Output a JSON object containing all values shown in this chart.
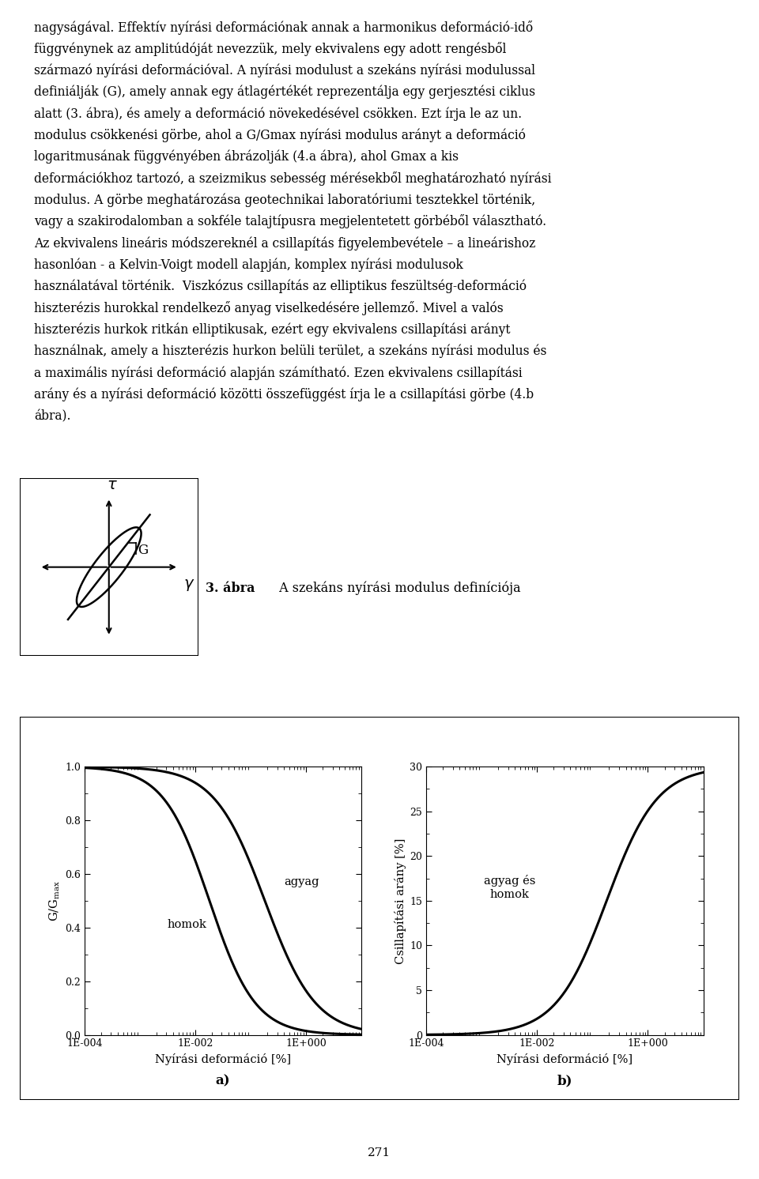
{
  "text_line1": "nagyságával. Effektív nyírási deformációnak annak a harmonikus deformáció-idő",
  "text_line2": "függvénynek az amplitúdóját nevezzük, mely ekvivalens egy adott rengésből",
  "text_line3": "származó nyírási deformációval. A nyírási modulust a szekáns nyírási modulussal",
  "text_line4": "definiálják (G), amely annak egy átlagértékét reprezentálja egy gerjesztési ciklus",
  "text_line5": "alatt (3. ábra), és amely a deformáció növekedésével csökken. Ezt írja le az un.",
  "text_line6": "modulus csökkenési görbe, ahol a G/Gmax nyírási modulus arányt a deformáció",
  "text_line7": "logaritmusának függvényében ábrázolják (4.a ábra), ahol Gmax a kis",
  "text_line8": "deformációkhoz tartozó, a szeizmikus sebesség mérésekből meghatározható nyírási",
  "text_line9": "modulus. A görbe meghatározása geotechnikai laboratóriumi tesztekkel történik,",
  "text_line10": "vagy a szakirodalomban a sokféle talajtípusra megjelentetett görbéből választható.",
  "text_line11": "Az ekvivalens lineáris módszereknél a csillapítás figyelembevétele – a lineárishoz",
  "text_line12": "hasonlóan - a Kelvin-Voigt modell alapján, komplex nyírási modulusok",
  "text_line13": "használatával történik.  Viszkózus csillapítás az elliptikus feszültség-deformáció",
  "text_line14": "hiszterézis hurokkal rendelkező anyag viselkedésére jellemző. Mivel a valós",
  "text_line15": "hiszterézis hurkok ritkán elliptikusak, ezért egy ekvivalens csillapítási arányt",
  "text_line16": "használnak, amely a hiszterézis hurkon belüli terület, a szekáns nyírási modulus és",
  "text_line17": "a maximális nyírási deformáció alapján számítható. Ezen ekvivalens csillapítási",
  "text_line18": "arány és a nyírási deformáció közötti összefüggést írja le a csillapítási görbe (4.b",
  "text_line19": "ábra).",
  "fig3_caption_bold": "3. ábra",
  "fig3_caption_normal": " A szekáns nyírási modulus definíciója",
  "xlabel_a": "Nyírási deformáció [%]",
  "ylabel_a": "G/G",
  "ylabel_a_sub": "max",
  "xlabel_b": "Nyírási deformáció [%]",
  "ylabel_b": "Csillapítási arány [%]",
  "label_a": "a)",
  "label_b": "b)",
  "homok_label": "homok",
  "agyag_label": "agyag",
  "agyag_homok_label": "agyag és\nhomok",
  "ylim_a": [
    0.0,
    1.0
  ],
  "ylim_b": [
    0,
    30
  ],
  "yticks_a": [
    0.0,
    0.2,
    0.4,
    0.6,
    0.8,
    1.0
  ],
  "ytick_labels_a": [
    "0.0",
    "0.2",
    "0.4",
    "0.6",
    "0.8",
    "1.0"
  ],
  "yticks_b": [
    0,
    5,
    10,
    15,
    20,
    25,
    30
  ],
  "ytick_labels_b": [
    "0",
    "5",
    "10",
    "15",
    "20",
    "25",
    "30"
  ],
  "xtick_labels": [
    "1E-004",
    "1E-002",
    "1E+000"
  ],
  "page_number": "271",
  "background_color": "#ffffff",
  "line_color": "#000000",
  "text_color": "#000000"
}
